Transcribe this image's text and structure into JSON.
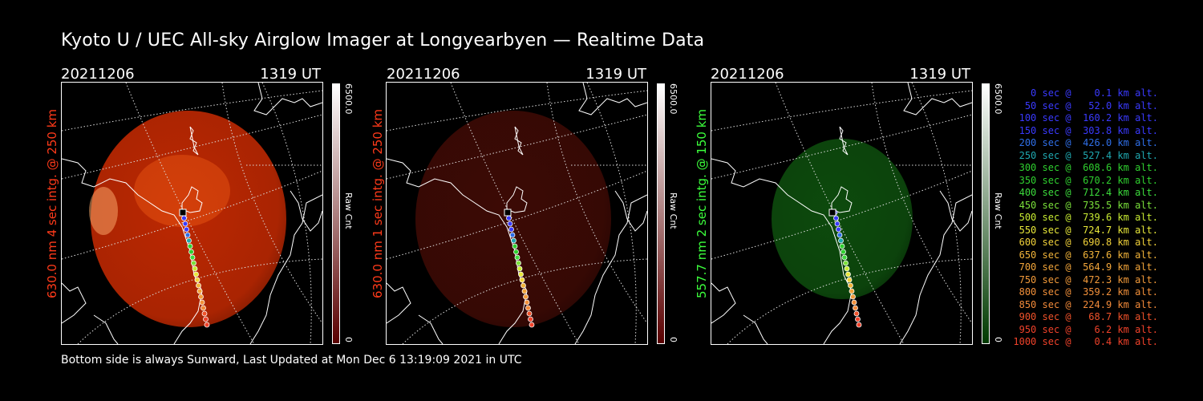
{
  "title": "Kyoto U / UEC All-sky Airglow Imager at Longyearbyen — Realtime Data",
  "panels": [
    {
      "date": "20211206",
      "time": "1319 UT",
      "label": "630.0 nm 4 sec intg. @ 250 km",
      "label_color": "#ff3a1a",
      "cbar_max": "6500.0",
      "cbar_min": "0",
      "cbar_unit": "Raw Cnt",
      "cbar_top": "#ffffff",
      "cbar_bottom": "#5a0000",
      "blob_color": "#c62a02",
      "blob_opacity": 0.95
    },
    {
      "date": "20211206",
      "time": "1319 UT",
      "label": "630.0 nm 1 sec intg. @ 250 km",
      "label_color": "#ff3a1a",
      "cbar_max": "6500.0",
      "cbar_min": "0",
      "cbar_unit": "Raw Cnt",
      "cbar_top": "#ffffff",
      "cbar_bottom": "#5a0000",
      "blob_color": "#3c0a05",
      "blob_opacity": 1.0
    },
    {
      "date": "20211206",
      "time": "1319 UT",
      "label": "557.7 nm 2 sec intg. @ 150 km",
      "label_color": "#3cff3c",
      "cbar_max": "6500.0",
      "cbar_min": "0",
      "cbar_unit": "Raw Cnt",
      "cbar_top": "#ffffff",
      "cbar_bottom": "#003a00",
      "blob_color": "#0d4a0d",
      "blob_opacity": 1.0
    }
  ],
  "footer": "Bottom side is always Sunward, Last Updated at Mon Dec  6 13:19:09 2021 in UTC",
  "legend": [
    {
      "text": "   0 sec @    0.1 km alt.",
      "color": "#3a3aff"
    },
    {
      "text": "  50 sec @   52.0 km alt.",
      "color": "#3a3aff"
    },
    {
      "text": " 100 sec @  160.2 km alt.",
      "color": "#3a3aff"
    },
    {
      "text": " 150 sec @  303.8 km alt.",
      "color": "#3a3aff"
    },
    {
      "text": " 200 sec @  426.0 km alt.",
      "color": "#2f6fe8"
    },
    {
      "text": " 250 sec @  527.4 km alt.",
      "color": "#1fa8b0"
    },
    {
      "text": " 300 sec @  608.6 km alt.",
      "color": "#2fd02f"
    },
    {
      "text": " 350 sec @  670.2 km alt.",
      "color": "#2fd02f"
    },
    {
      "text": " 400 sec @  712.4 km alt.",
      "color": "#3cdc3c"
    },
    {
      "text": " 450 sec @  735.5 km alt.",
      "color": "#7ae03a"
    },
    {
      "text": " 500 sec @  739.6 km alt.",
      "color": "#c8ec32"
    },
    {
      "text": " 550 sec @  724.7 km alt.",
      "color": "#e8e83a"
    },
    {
      "text": " 600 sec @  690.8 km alt.",
      "color": "#f2d23a"
    },
    {
      "text": " 650 sec @  637.6 km alt.",
      "color": "#f2b43a"
    },
    {
      "text": " 700 sec @  564.9 km alt.",
      "color": "#f2a53a"
    },
    {
      "text": " 750 sec @  472.3 km alt.",
      "color": "#f29a3a"
    },
    {
      "text": " 800 sec @  359.2 km alt.",
      "color": "#f2903a"
    },
    {
      "text": " 850 sec @  224.9 km alt.",
      "color": "#f28a3a"
    },
    {
      "text": " 900 sec @   68.7 km alt.",
      "color": "#f0522a"
    },
    {
      "text": " 950 sec @    6.2 km alt.",
      "color": "#f0422a"
    },
    {
      "text": "1000 sec @    0.4 km alt.",
      "color": "#f0422a"
    }
  ]
}
